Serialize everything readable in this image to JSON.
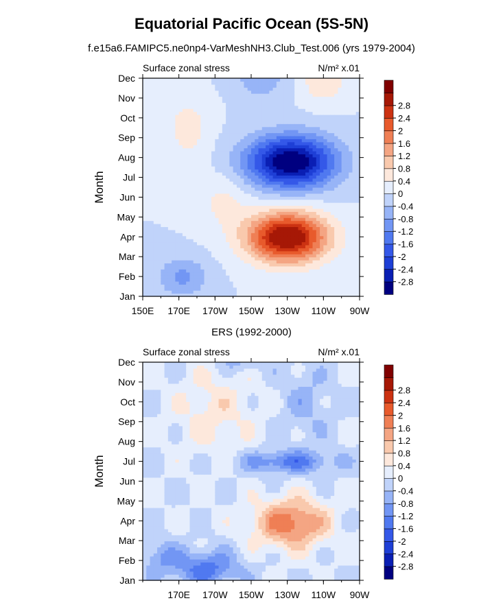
{
  "title": "Equatorial Pacific Ocean (5S-5N)",
  "subtitle": "f.e15a6.FAMIPC5.ne0np4-VarMeshNH3.Club_Test.006 (yrs 1979-2004)",
  "colors": [
    "#000080",
    "#0a1fb4",
    "#1e3fd6",
    "#3458e8",
    "#5079f0",
    "#7296f4",
    "#97b4f7",
    "#c0d3fa",
    "#e6eefd",
    "#fde8dc",
    "#f9c9ad",
    "#f4a583",
    "#ef7f55",
    "#e85a2c",
    "#cc3212",
    "#a61806",
    "#800000"
  ],
  "chart_data": [
    {
      "type": "heatmap",
      "panel_title": "",
      "left_label": "Surface zonal stress",
      "right_label": "N/m² x.01",
      "ylabel": "Month",
      "xlabel": "",
      "x_ticks": [
        "150E",
        "170E",
        "170W",
        "150W",
        "130W",
        "110W",
        "90W"
      ],
      "x_values": [
        150,
        170,
        190,
        210,
        230,
        250,
        270
      ],
      "xlim": [
        150,
        270
      ],
      "y_ticks": [
        "Jan",
        "Feb",
        "Mar",
        "Apr",
        "May",
        "Jun",
        "Jul",
        "Aug",
        "Sep",
        "Oct",
        "Nov",
        "Dec"
      ],
      "levels": [
        -2.8,
        -2.4,
        -2,
        -1.6,
        -1.2,
        -0.8,
        -0.4,
        0,
        0.4,
        0.8,
        1.2,
        1.6,
        2,
        2.4,
        2.8
      ],
      "features": [
        {
          "lon": 230,
          "month": 3,
          "amp": 3.4,
          "slon": 22,
          "smon": 1.25
        },
        {
          "lon": 232,
          "month": 6.8,
          "amp": -3.3,
          "slon": 24,
          "smon": 1.3
        },
        {
          "lon": 172,
          "month": 1,
          "amp": -0.9,
          "slon": 14,
          "smon": 1.0
        },
        {
          "lon": 175,
          "month": 8.5,
          "amp": 0.6,
          "slon": 12,
          "smon": 1.6
        },
        {
          "lon": 195,
          "month": 4.8,
          "amp": 0.5,
          "slon": 14,
          "smon": 1.4
        },
        {
          "lon": 250,
          "month": 11,
          "amp": 0.8,
          "slon": 12,
          "smon": 1.2
        },
        {
          "lon": 215,
          "month": 11,
          "amp": -0.7,
          "slon": 14,
          "smon": 1.0
        }
      ]
    },
    {
      "type": "heatmap",
      "panel_title": "ERS (1992-2000)",
      "left_label": "Surface zonal stress",
      "right_label": "N/m² x.01",
      "ylabel": "Month",
      "xlabel": "",
      "x_ticks": [
        "170E",
        "170W",
        "150W",
        "130W",
        "110W",
        "90W"
      ],
      "x_values": [
        170,
        190,
        210,
        230,
        250,
        270
      ],
      "xlim": [
        150,
        270
      ],
      "y_ticks": [
        "Jan",
        "Feb",
        "Mar",
        "Apr",
        "May",
        "Jun",
        "Jul",
        "Aug",
        "Sep",
        "Oct",
        "Nov",
        "Dec"
      ],
      "levels": [
        -2.8,
        -2.4,
        -2,
        -1.6,
        -1.2,
        -0.8,
        -0.4,
        0,
        0.4,
        0.8,
        1.2,
        1.6,
        2,
        2.4,
        2.8
      ],
      "features": [
        {
          "lon": 232,
          "month": 2.9,
          "amp": 1.9,
          "slon": 20,
          "smon": 1.2
        },
        {
          "lon": 230,
          "month": 6,
          "amp": -1.3,
          "slon": 26,
          "smon": 0.55
        },
        {
          "lon": 185,
          "month": 0.6,
          "amp": -1.4,
          "slon": 18,
          "smon": 0.9
        },
        {
          "lon": 160,
          "month": 1.2,
          "amp": -0.8,
          "slon": 10,
          "smon": 0.8
        },
        {
          "lon": 190,
          "month": 8.5,
          "amp": 0.6,
          "slon": 22,
          "smon": 2.2
        },
        {
          "lon": 240,
          "month": 9,
          "amp": -0.5,
          "slon": 14,
          "smon": 2.0
        },
        {
          "lon": 205,
          "month": 11,
          "amp": -0.6,
          "slon": 12,
          "smon": 0.5
        }
      ]
    }
  ]
}
